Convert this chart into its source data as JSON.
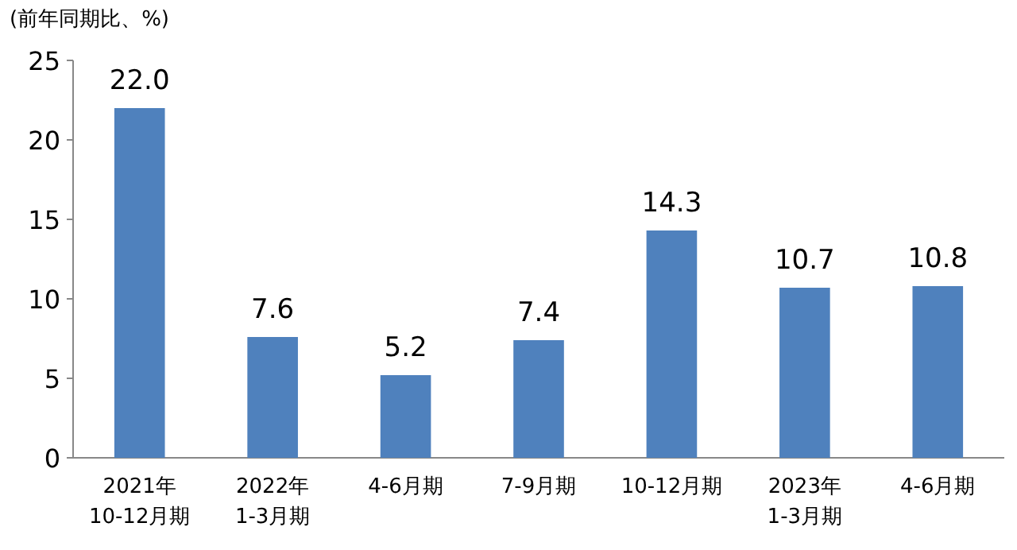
{
  "chart_data": {
    "type": "bar",
    "ylabel": "(前年同期比、%)",
    "categories": [
      "2021年\n10-12月期",
      "2022年\n1-3月期",
      "4-6月期",
      "7-9月期",
      "10-12月期",
      "2023年\n1-3月期",
      "4-6月期"
    ],
    "values": [
      22.0,
      7.6,
      5.2,
      7.4,
      14.3,
      10.7,
      10.8
    ],
    "value_labels": [
      "22.0",
      "7.6",
      "5.2",
      "7.4",
      "14.3",
      "10.7",
      "10.8"
    ],
    "color": "#4f81bd",
    "ylim": [
      0,
      25
    ],
    "yticks": [
      0,
      5,
      10,
      15,
      20,
      25
    ]
  }
}
